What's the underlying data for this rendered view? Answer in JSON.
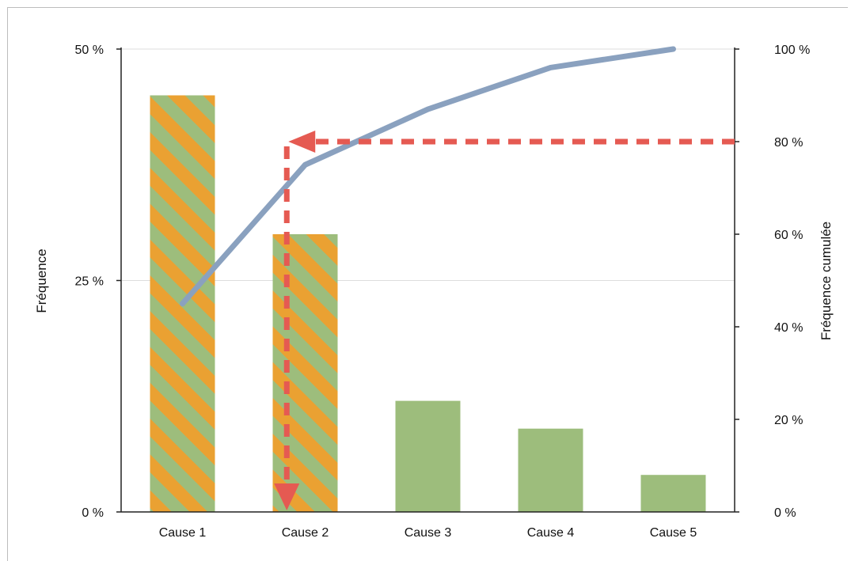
{
  "chart_data": {
    "type": "bar",
    "categories": [
      "Cause 1",
      "Cause 2",
      "Cause 3",
      "Cause 4",
      "Cause 5"
    ],
    "series": [
      {
        "type": "bar",
        "axis": "left",
        "values": [
          45,
          30,
          12,
          9,
          4
        ]
      },
      {
        "type": "line",
        "axis": "right",
        "values": [
          45,
          75,
          87,
          96,
          100
        ]
      }
    ],
    "ylabel": "Fréquence",
    "y2label": "Fréquence cumulée",
    "ylim": [
      0,
      50
    ],
    "y2lim": [
      0,
      100
    ],
    "y_ticks": [
      "0 %",
      "25 %",
      "50 %"
    ],
    "y_tick_values": [
      0,
      25,
      50
    ],
    "y2_ticks": [
      "0 %",
      "20 %",
      "40 %",
      "60 %",
      "80 %",
      "100 %"
    ],
    "y2_tick_values": [
      0,
      20,
      40,
      60,
      80,
      100
    ],
    "highlighted_categories": [
      "Cause 1",
      "Cause 2"
    ],
    "threshold": {
      "value": 80,
      "axis": "right",
      "category_position": 1.35
    },
    "grid": "horizontal",
    "legend": "none",
    "colors": {
      "bar": "#9dbd7c",
      "stripe": "#eaa132",
      "line": "#8aa1bf",
      "threshold": "#e55a52",
      "axis": "#222222",
      "grid": "#dddddd"
    }
  }
}
